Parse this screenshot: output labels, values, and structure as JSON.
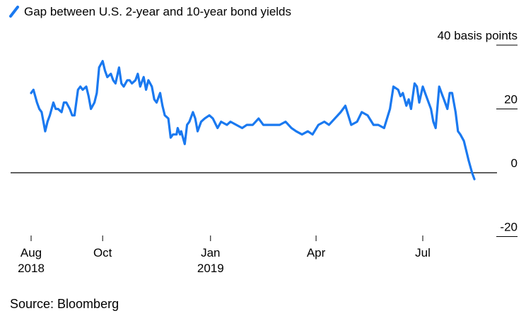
{
  "legend": {
    "label": "Gap between U.S. 2-year and 10-year bond yields",
    "color": "#1a79f0"
  },
  "source": "Source: Bloomberg",
  "chart_data": {
    "type": "line",
    "title": "",
    "xlabel": "",
    "ylabel": "",
    "ylim": [
      -20,
      40
    ],
    "grid": false,
    "zero_line": true,
    "legend_position": "top-left",
    "color": "#1a79f0",
    "y_ticks": [
      {
        "value": 40,
        "label": "40 basis points"
      },
      {
        "value": 20,
        "label": "20"
      },
      {
        "value": 0,
        "label": "0"
      },
      {
        "value": -20,
        "label": "-20"
      }
    ],
    "x_ticks": [
      {
        "date": "2018-08-01",
        "label": [
          "Aug",
          "2018"
        ]
      },
      {
        "date": "2018-10-01",
        "label": [
          "Oct"
        ]
      },
      {
        "date": "2019-01-01",
        "label": [
          "Jan",
          "2019"
        ]
      },
      {
        "date": "2019-04-01",
        "label": [
          "Apr"
        ]
      },
      {
        "date": "2019-07-01",
        "label": [
          "Jul"
        ]
      }
    ],
    "series": [
      {
        "x": [
          "2018-08-01",
          "2018-08-03",
          "2018-08-06",
          "2018-08-08",
          "2018-08-10",
          "2018-08-13",
          "2018-08-15",
          "2018-08-17",
          "2018-08-20",
          "2018-08-22",
          "2018-08-24",
          "2018-08-27",
          "2018-08-29",
          "2018-08-31",
          "2018-09-03",
          "2018-09-05",
          "2018-09-07",
          "2018-09-10",
          "2018-09-12",
          "2018-09-14",
          "2018-09-17",
          "2018-09-19",
          "2018-09-21",
          "2018-09-24",
          "2018-09-26",
          "2018-09-28",
          "2018-10-01",
          "2018-10-03",
          "2018-10-05",
          "2018-10-08",
          "2018-10-10",
          "2018-10-12",
          "2018-10-15",
          "2018-10-17",
          "2018-10-19",
          "2018-10-22",
          "2018-10-24",
          "2018-10-26",
          "2018-10-29",
          "2018-10-31",
          "2018-11-02",
          "2018-11-05",
          "2018-11-07",
          "2018-11-09",
          "2018-11-12",
          "2018-11-14",
          "2018-11-16",
          "2018-11-19",
          "2018-11-21",
          "2018-11-23",
          "2018-11-26",
          "2018-11-28",
          "2018-11-30",
          "2018-12-03",
          "2018-12-04",
          "2018-12-06",
          "2018-12-07",
          "2018-12-10",
          "2018-12-12",
          "2018-12-14",
          "2018-12-17",
          "2018-12-19",
          "2018-12-21",
          "2018-12-24",
          "2018-12-27",
          "2018-12-31",
          "2019-01-03",
          "2019-01-07",
          "2019-01-10",
          "2019-01-15",
          "2019-01-18",
          "2019-01-23",
          "2019-01-28",
          "2019-02-01",
          "2019-02-06",
          "2019-02-11",
          "2019-02-15",
          "2019-02-20",
          "2019-02-25",
          "2019-03-01",
          "2019-03-06",
          "2019-03-11",
          "2019-03-15",
          "2019-03-20",
          "2019-03-25",
          "2019-03-29",
          "2019-04-03",
          "2019-04-08",
          "2019-04-12",
          "2019-04-17",
          "2019-04-22",
          "2019-04-26",
          "2019-05-01",
          "2019-05-06",
          "2019-05-10",
          "2019-05-15",
          "2019-05-20",
          "2019-05-24",
          "2019-05-29",
          "2019-06-03",
          "2019-06-06",
          "2019-06-10",
          "2019-06-12",
          "2019-06-14",
          "2019-06-17",
          "2019-06-19",
          "2019-06-21",
          "2019-06-24",
          "2019-06-26",
          "2019-06-28",
          "2019-07-01",
          "2019-07-03",
          "2019-07-08",
          "2019-07-10",
          "2019-07-12",
          "2019-07-15",
          "2019-07-17",
          "2019-07-19",
          "2019-07-22",
          "2019-07-24",
          "2019-07-26",
          "2019-07-29",
          "2019-07-31",
          "2019-08-02",
          "2019-08-05",
          "2019-08-07",
          "2019-08-09",
          "2019-08-12",
          "2019-08-14"
        ],
        "y": [
          25,
          26,
          22,
          20,
          19,
          13,
          16,
          18,
          22,
          20,
          20,
          19,
          22,
          22,
          20,
          18,
          18,
          26,
          27,
          26,
          27,
          24,
          20,
          22,
          25,
          33,
          35,
          32,
          30,
          31,
          29,
          28,
          33,
          28,
          27,
          29,
          29,
          28,
          29,
          31,
          27,
          30,
          26,
          29,
          27,
          23,
          22,
          25,
          21,
          18,
          17,
          11,
          12,
          12,
          14,
          12,
          13,
          9,
          15,
          16,
          19,
          17,
          13,
          16,
          17,
          18,
          17,
          14,
          16,
          15,
          16,
          15,
          14,
          15,
          15,
          17,
          15,
          15,
          15,
          15,
          16,
          14,
          13,
          12,
          13,
          12,
          15,
          16,
          15,
          17,
          19,
          21,
          15,
          16,
          19,
          18,
          15,
          15,
          14,
          20,
          27,
          26,
          24,
          25,
          21,
          23,
          20,
          28,
          27,
          22,
          27,
          25,
          20,
          16,
          14,
          27,
          25,
          23,
          20,
          25,
          25,
          19,
          13,
          12,
          10,
          7,
          4,
          0,
          -2
        ]
      }
    ]
  }
}
